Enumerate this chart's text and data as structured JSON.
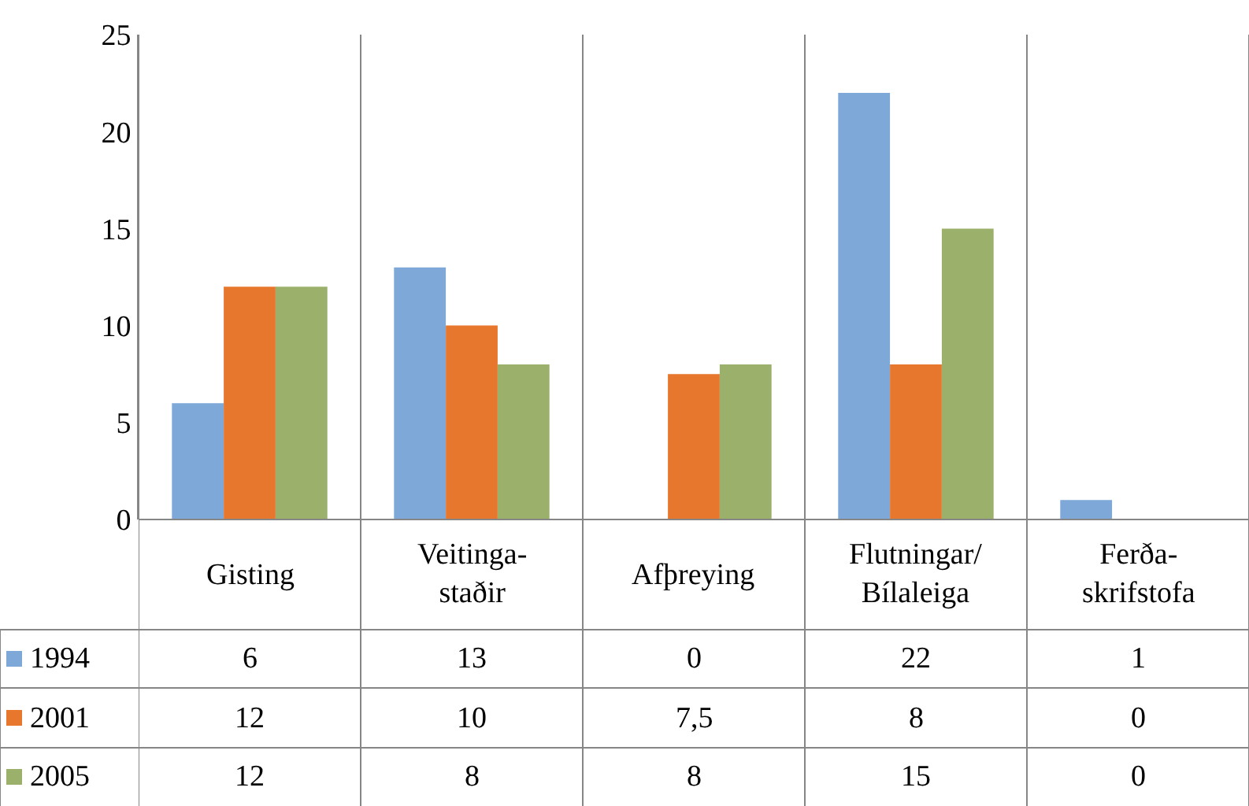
{
  "chart_data": {
    "type": "bar",
    "categories": [
      "Gisting",
      "Veitinga-\nstaðir",
      "Afþreying",
      "Flutningar/\nBílaleiga",
      "Ferða-\nskrifstofa"
    ],
    "series": [
      {
        "name": "1994",
        "color": "#7ea8d8",
        "values": [
          6,
          13,
          0,
          22,
          1
        ],
        "value_labels": [
          "6",
          "13",
          "0",
          "22",
          "1"
        ]
      },
      {
        "name": "2001",
        "color": "#e8772e",
        "values": [
          12,
          10,
          7.5,
          8,
          0
        ],
        "value_labels": [
          "12",
          "10",
          "7,5",
          "8",
          "0"
        ]
      },
      {
        "name": "2005",
        "color": "#9bb06a",
        "values": [
          12,
          8,
          8,
          15,
          0
        ],
        "value_labels": [
          "12",
          "8",
          "8",
          "15",
          "0"
        ]
      }
    ],
    "ylim": [
      0,
      25
    ],
    "yticks": [
      0,
      5,
      10,
      15,
      20,
      25
    ],
    "legend": "bottom left"
  }
}
